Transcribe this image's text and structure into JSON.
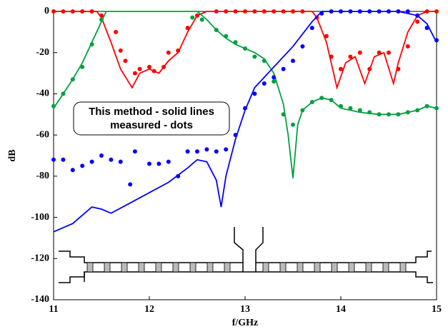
{
  "chart_data": {
    "type": "line-dots",
    "x_label": "f/GHz",
    "y_label": "dB",
    "annotation": [
      "This method - solid lines",
      "measured - dots"
    ],
    "xlim": [
      11,
      15
    ],
    "ylim": [
      -140,
      0
    ],
    "xticks": [
      11,
      12,
      13,
      14,
      15
    ],
    "yticks": [
      -140,
      -120,
      -100,
      -80,
      -60,
      -40,
      -20,
      0
    ],
    "series": [
      {
        "color": "#ff0000",
        "style": "line",
        "x": [
          11,
          11.2,
          11.45,
          11.5,
          11.6,
          11.7,
          11.82,
          11.9,
          12.0,
          12.1,
          12.2,
          12.3,
          12.4,
          12.5,
          12.6,
          13.0,
          13.5,
          13.7,
          13.75,
          13.85,
          13.96,
          14.05,
          14.15,
          14.25,
          14.35,
          14.45,
          14.55,
          14.6,
          14.7,
          14.8,
          14.9,
          15
        ],
        "values": [
          0,
          0,
          0,
          -3,
          -15,
          -28,
          -37,
          -30,
          -28,
          -30,
          -24,
          -20,
          -10,
          -2,
          0,
          0,
          0,
          0,
          -3,
          -15,
          -37,
          -25,
          -22,
          -35,
          -22,
          -20,
          -35,
          -25,
          -10,
          -2,
          0,
          0
        ]
      },
      {
        "color": "#ff0000",
        "style": "dots",
        "x": [
          11.0,
          11.1,
          11.2,
          11.3,
          11.4,
          11.5,
          11.65,
          11.7,
          11.75,
          11.85,
          11.9,
          12.0,
          12.05,
          12.15,
          12.2,
          12.3,
          12.4,
          12.5,
          12.7,
          12.8,
          12.9,
          13.0,
          13.1,
          13.2,
          13.3,
          13.4,
          13.5,
          13.6,
          13.75,
          13.85,
          13.9,
          14.0,
          14.1,
          14.2,
          14.3,
          14.4,
          14.5,
          14.6,
          14.7,
          14.8,
          14.9,
          15.0
        ],
        "values": [
          0,
          0,
          0,
          0,
          0,
          -2,
          -10,
          -19,
          -24,
          -30,
          -28,
          -27,
          -29,
          -27,
          -20,
          -19,
          -8,
          -2,
          0,
          0,
          0,
          0,
          0,
          0,
          0,
          0,
          0,
          0,
          -3,
          -12,
          -22,
          -28,
          -22,
          -20,
          -28,
          -20,
          -20,
          -28,
          -17,
          -5,
          0,
          0
        ]
      },
      {
        "color": "#00a040",
        "style": "line",
        "x": [
          11,
          11.1,
          11.2,
          11.3,
          11.4,
          11.5,
          11.55,
          12.0,
          12.5,
          12.6,
          12.7,
          12.8,
          12.9,
          13.0,
          13.1,
          13.2,
          13.3,
          13.4,
          13.45,
          13.5,
          13.55,
          13.6,
          13.7,
          13.8,
          13.9,
          14.0,
          14.2,
          14.4,
          14.6,
          14.8,
          14.9,
          15
        ],
        "values": [
          -47,
          -40,
          -33,
          -25,
          -15,
          -5,
          0,
          0,
          0,
          -4,
          -9,
          -13,
          -16,
          -18,
          -20,
          -23,
          -30,
          -45,
          -60,
          -81,
          -55,
          -48,
          -44,
          -42,
          -43,
          -47,
          -49,
          -50,
          -50,
          -48,
          -46,
          -47
        ]
      },
      {
        "color": "#00a040",
        "style": "dots",
        "x": [
          11.0,
          11.1,
          11.2,
          11.3,
          11.4,
          11.5,
          12.45,
          12.55,
          12.7,
          12.8,
          12.9,
          13.0,
          13.1,
          13.2,
          13.3,
          13.4,
          13.5,
          13.6,
          13.7,
          13.8,
          13.9,
          14.0,
          14.1,
          14.2,
          14.3,
          14.4,
          14.5,
          14.6,
          14.7,
          14.8,
          14.9,
          15.0
        ],
        "values": [
          -46,
          -40,
          -33,
          -27,
          -16,
          -4,
          -3,
          -4,
          -9,
          -12,
          -15,
          -18,
          -22,
          -24,
          -34,
          -50,
          -55,
          -48,
          -44,
          -42,
          -43,
          -46,
          -47,
          -48,
          -49,
          -50,
          -50,
          -50,
          -49,
          -48,
          -46,
          -47
        ]
      },
      {
        "color": "#0000ff",
        "style": "line",
        "x": [
          11,
          11.2,
          11.4,
          11.5,
          11.6,
          11.8,
          12.0,
          12.2,
          12.4,
          12.5,
          12.6,
          12.7,
          12.75,
          12.8,
          12.9,
          13.0,
          13.1,
          13.3,
          13.5,
          13.7,
          13.8,
          14.2,
          14.6,
          14.7,
          14.8,
          14.9,
          15
        ],
        "values": [
          -107,
          -103,
          -95,
          -96,
          -98,
          -93,
          -88,
          -83,
          -76,
          -72,
          -73,
          -82,
          -95,
          -80,
          -62,
          -48,
          -37,
          -27,
          -17,
          -5,
          0,
          0,
          0,
          -1,
          -2,
          -6,
          -15
        ]
      },
      {
        "color": "#0000ff",
        "style": "dots",
        "x": [
          11.0,
          11.1,
          11.2,
          11.3,
          11.4,
          11.5,
          11.6,
          11.7,
          11.8,
          11.85,
          12.0,
          12.1,
          12.2,
          12.3,
          12.4,
          12.5,
          12.6,
          12.7,
          12.8,
          12.9,
          13.0,
          13.1,
          13.2,
          13.3,
          13.4,
          13.5,
          13.6,
          13.7,
          13.8,
          13.9,
          14.0,
          14.1,
          14.2,
          14.3,
          14.4,
          14.5,
          14.6,
          14.7,
          14.8,
          14.9,
          15.0
        ],
        "values": [
          -72,
          -72,
          -77,
          -75,
          -73,
          -70,
          -72,
          -73,
          -84,
          -68,
          -74,
          -74,
          -73,
          -80,
          -68,
          -68,
          -67,
          -68,
          -67,
          -60,
          -47,
          -40,
          -35,
          -32,
          -28,
          -24,
          -17,
          -8,
          -1,
          0,
          0,
          0,
          0,
          0,
          0,
          0,
          0,
          0,
          -2,
          -8,
          -14
        ]
      }
    ]
  }
}
